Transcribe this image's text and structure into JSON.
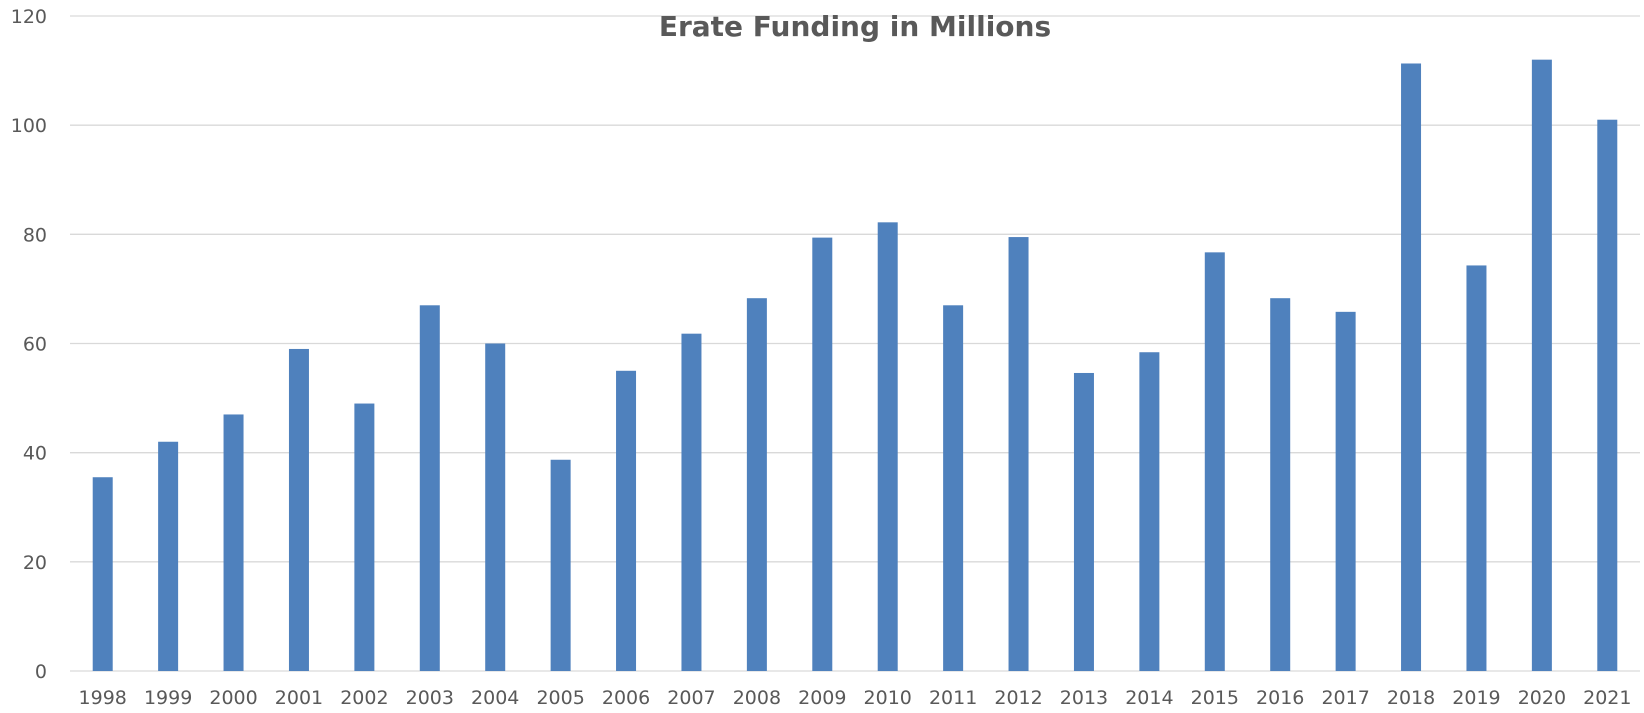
{
  "chart_data": {
    "type": "bar",
    "title": "Erate Funding in Millions",
    "xlabel": "",
    "ylabel": "",
    "categories": [
      "1998",
      "1999",
      "2000",
      "2001",
      "2002",
      "2003",
      "2004",
      "2005",
      "2006",
      "2007",
      "2008",
      "2009",
      "2010",
      "2011",
      "2012",
      "2013",
      "2014",
      "2015",
      "2016",
      "2017",
      "2018",
      "2019",
      "2020",
      "2021"
    ],
    "values": [
      35.5,
      42,
      47,
      59,
      49,
      67,
      60,
      38.7,
      55,
      61.8,
      68.3,
      79.4,
      82.2,
      67,
      79.5,
      54.6,
      58.4,
      76.7,
      68.3,
      65.8,
      111.3,
      74.3,
      112,
      101
    ],
    "ylim": [
      0,
      120
    ],
    "yticks": [
      0,
      20,
      40,
      60,
      80,
      100,
      120
    ],
    "grid": true,
    "legend": "none",
    "bar_color": "#4f81bd",
    "grid_color": "#d9d9d9",
    "text_color": "#595959"
  }
}
